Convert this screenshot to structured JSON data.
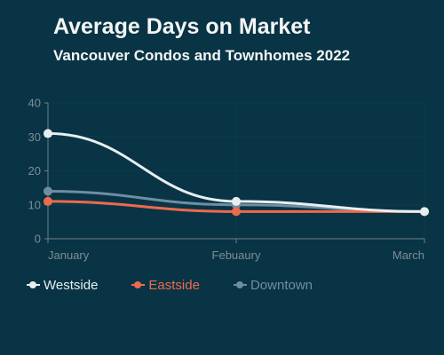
{
  "title": "Average Days on Market",
  "subtitle": "Vancouver Condos and Townhomes 2022",
  "colors": {
    "background": "#083445",
    "text": "#f5f5f5",
    "axis": "#6f7f89",
    "grid": "#0e3b48"
  },
  "chart_data": {
    "type": "line",
    "categories": [
      "January",
      "Febuaury",
      "March"
    ],
    "ylim": [
      0,
      40
    ],
    "yticks": [
      0,
      10,
      20,
      30,
      40
    ],
    "grid": true,
    "legend_position": "bottom-left",
    "series": [
      {
        "name": "Westside",
        "color": "#e8eef0",
        "values": [
          31,
          11,
          8
        ]
      },
      {
        "name": "Eastside",
        "color": "#ee6a4c",
        "values": [
          11,
          8,
          8
        ]
      },
      {
        "name": "Downtown",
        "color": "#6f8ea2",
        "values": [
          14,
          10,
          8
        ]
      }
    ]
  }
}
